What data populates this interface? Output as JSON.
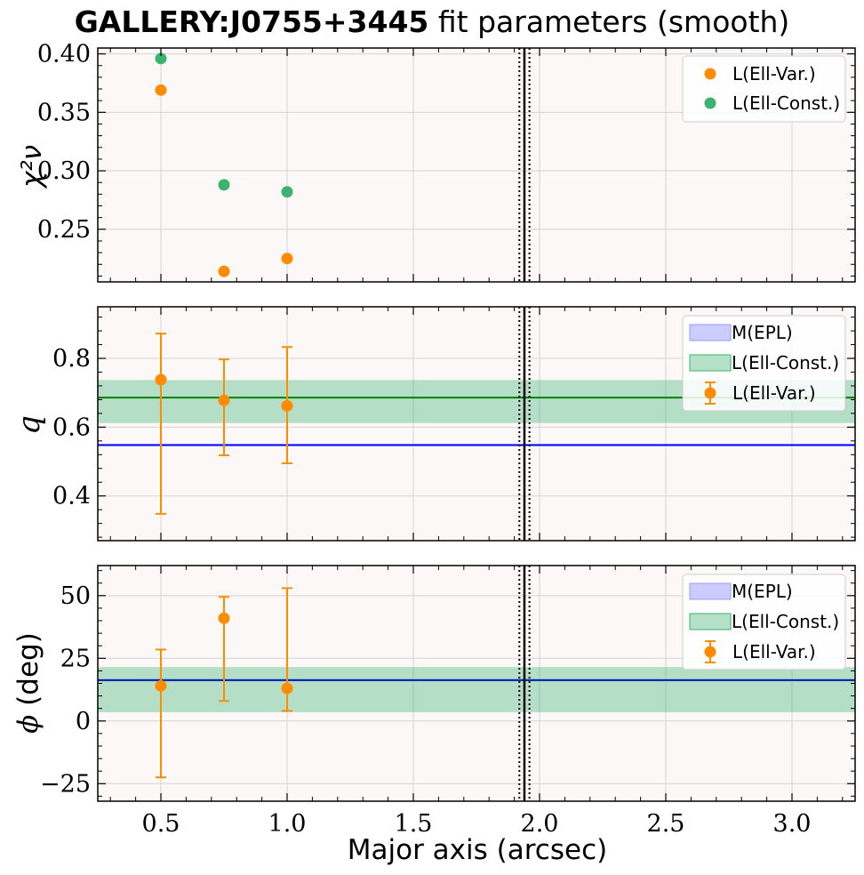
{
  "title": {
    "bold": "GALLERY:J0755+3445",
    "rest": " fit parameters (smooth)"
  },
  "colors": {
    "background": "#fdf8f8",
    "ell_var": "#ff8c00",
    "ell_const_marker": "#3cb371",
    "ell_const_line": "#008000",
    "ell_const_band": "#3cb371",
    "epl_line": "#0000ff",
    "epl_band": "#9999ff",
    "grid": "#d3d3d3",
    "vline": "#000000"
  },
  "chart_data": [
    {
      "type": "scatter",
      "panel": "chi2",
      "ylabel": "χ²ν",
      "xlim": [
        0.25,
        3.25
      ],
      "ylim": [
        0.205,
        0.405
      ],
      "yticks": [
        0.25,
        0.3,
        0.35,
        0.4
      ],
      "ytick_labels": [
        "0.25",
        "0.30",
        "0.35",
        "0.40"
      ],
      "grid": true,
      "legend_position": "top-right",
      "vlines": {
        "solid": [
          1.94
        ],
        "dotted": [
          1.92,
          1.96
        ]
      },
      "series": [
        {
          "name": "L(Ell-Var.)",
          "x": [
            0.5,
            0.75,
            1.0
          ],
          "y": [
            0.369,
            0.214,
            0.225
          ]
        },
        {
          "name": "L(Ell-Const.)",
          "x": [
            0.5,
            0.75,
            1.0
          ],
          "y": [
            0.396,
            0.288,
            0.282
          ]
        }
      ]
    },
    {
      "type": "scatter",
      "panel": "q",
      "ylabel": "q",
      "xlim": [
        0.25,
        3.25
      ],
      "ylim": [
        0.27,
        0.95
      ],
      "yticks": [
        0.4,
        0.6,
        0.8
      ],
      "ytick_labels": [
        "0.4",
        "0.6",
        "0.8"
      ],
      "grid": true,
      "legend_position": "top-right",
      "vlines": {
        "solid": [
          1.94
        ],
        "dotted": [
          1.92,
          1.96
        ]
      },
      "epl": {
        "name": "M(EPL)",
        "value": 0.548,
        "low": 0.545,
        "high": 0.551
      },
      "ell_const": {
        "name": "L(Ell-Const.)",
        "value": 0.686,
        "low": 0.612,
        "high": 0.737
      },
      "series": [
        {
          "name": "L(Ell-Var.)",
          "x": [
            0.5,
            0.75,
            1.0
          ],
          "y": [
            0.738,
            0.678,
            0.662
          ],
          "err_low": [
            0.348,
            0.518,
            0.495
          ],
          "err_high": [
            0.872,
            0.797,
            0.833
          ]
        }
      ]
    },
    {
      "type": "scatter",
      "panel": "phi",
      "ylabel": "(deg)",
      "xlabel": "Major axis (arcsec)",
      "xlim": [
        0.25,
        3.25
      ],
      "ylim": [
        -32,
        62
      ],
      "xticks": [
        0.5,
        1.0,
        1.5,
        2.0,
        2.5,
        3.0
      ],
      "xtick_labels": [
        "0.5",
        "1.0",
        "1.5",
        "2.0",
        "2.5",
        "3.0"
      ],
      "yticks": [
        -25,
        0,
        25,
        50
      ],
      "ytick_labels": [
        "−25",
        "0",
        "25",
        "50"
      ],
      "grid": true,
      "legend_position": "top-right",
      "vlines": {
        "solid": [
          1.94
        ],
        "dotted": [
          1.92,
          1.96
        ]
      },
      "epl": {
        "name": "M(EPL)",
        "value": 16.3,
        "low": 15.8,
        "high": 16.8
      },
      "ell_const": {
        "name": "L(Ell-Const.)",
        "value": 16.3,
        "low": 3.5,
        "high": 21.5
      },
      "series": [
        {
          "name": "L(Ell-Var.)",
          "x": [
            0.5,
            0.75,
            1.0
          ],
          "y": [
            14.0,
            41.0,
            13.0
          ],
          "err_low": [
            -22.5,
            8.0,
            4.0
          ],
          "err_high": [
            28.5,
            49.5,
            53.0
          ]
        }
      ]
    }
  ]
}
